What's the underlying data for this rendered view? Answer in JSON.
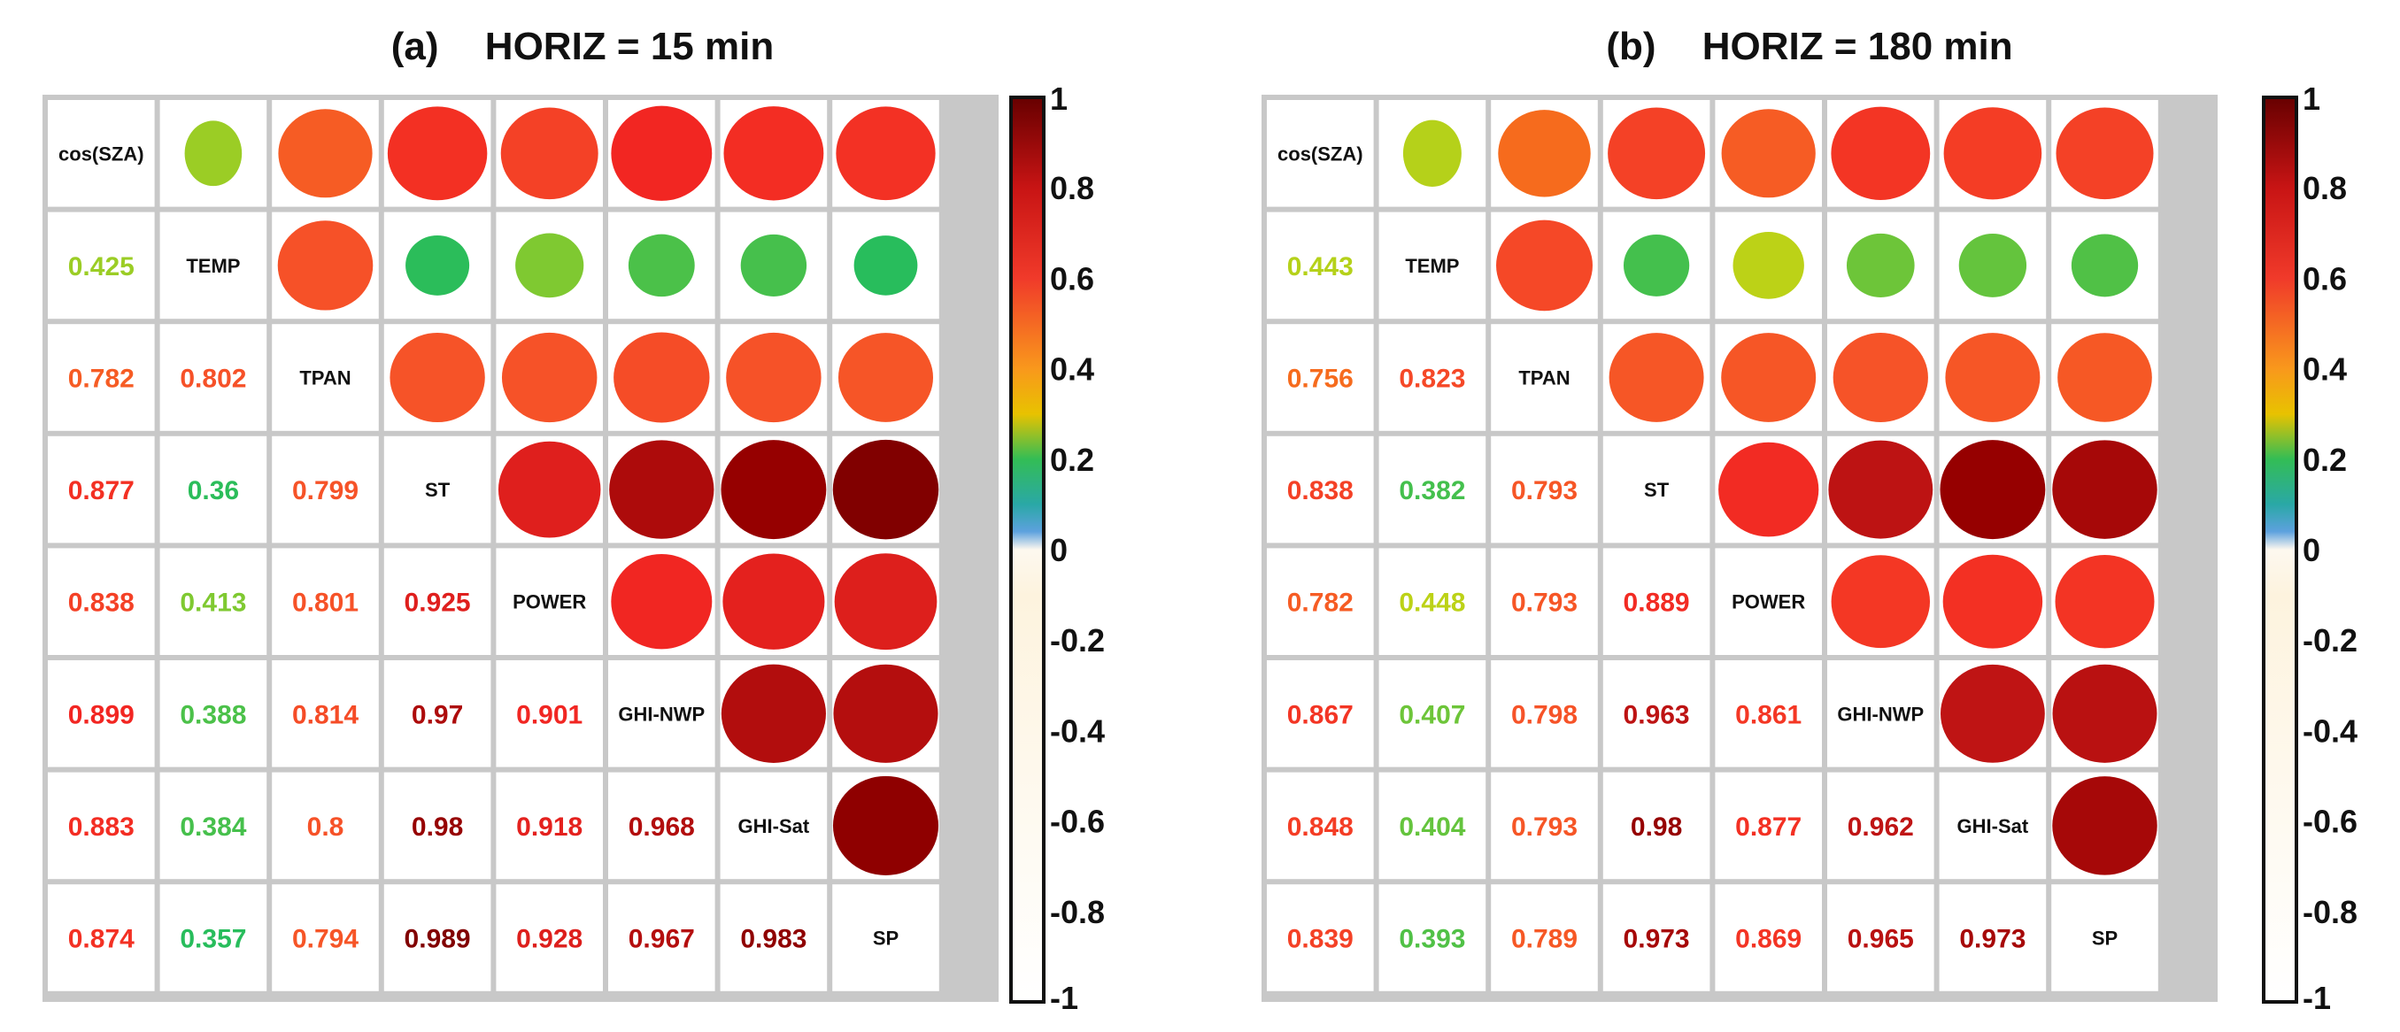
{
  "chart_data": [
    {
      "type": "heatmap",
      "subtype": "correlation-matrix",
      "panel_label": "(a)",
      "title": "HORIZ = 15  min",
      "variables": [
        "cos(SZA)",
        "TEMP",
        "TPAN",
        "ST",
        "POWER",
        "GHI-NWP",
        "GHI-Sat",
        "SP"
      ],
      "lower_triangle_rows": [
        [],
        [
          0.425
        ],
        [
          0.782,
          0.802
        ],
        [
          0.877,
          0.36,
          0.799
        ],
        [
          0.838,
          0.413,
          0.801,
          0.925
        ],
        [
          0.899,
          0.388,
          0.814,
          0.97,
          0.901
        ],
        [
          0.883,
          0.384,
          0.8,
          0.98,
          0.918,
          0.968
        ],
        [
          0.874,
          0.357,
          0.794,
          0.989,
          0.928,
          0.967,
          0.983
        ]
      ],
      "lower_triangle_labels": [
        [],
        [
          "0.425"
        ],
        [
          "0.782",
          "0.802"
        ],
        [
          "0.877",
          "0.36",
          "0.799"
        ],
        [
          "0.838",
          "0.413",
          "0.801",
          "0.925"
        ],
        [
          "0.899",
          "0.388",
          "0.814",
          "0.97",
          "0.901"
        ],
        [
          "0.883",
          "0.384",
          "0.8",
          "0.98",
          "0.918",
          "0.968"
        ],
        [
          "0.874",
          "0.357",
          "0.794",
          "0.989",
          "0.928",
          "0.967",
          "0.983"
        ]
      ],
      "upper_display": "circles",
      "lower_display": "numbers",
      "colorbar": {
        "range": [
          -1,
          1
        ],
        "ticks": [
          "1",
          "0.8",
          "0.6",
          "0.4",
          "0.2",
          "0",
          "-0.2",
          "-0.4",
          "-0.6",
          "-0.8",
          "-1"
        ]
      }
    },
    {
      "type": "heatmap",
      "subtype": "correlation-matrix",
      "panel_label": "(b)",
      "title": "HORIZ = 180  min",
      "variables": [
        "cos(SZA)",
        "TEMP",
        "TPAN",
        "ST",
        "POWER",
        "GHI-NWP",
        "GHI-Sat",
        "SP"
      ],
      "lower_triangle_rows": [
        [],
        [
          0.443
        ],
        [
          0.756,
          0.823
        ],
        [
          0.838,
          0.382,
          0.793
        ],
        [
          0.782,
          0.448,
          0.793,
          0.889
        ],
        [
          0.867,
          0.407,
          0.798,
          0.963,
          0.861
        ],
        [
          0.848,
          0.404,
          0.793,
          0.98,
          0.877,
          0.962
        ],
        [
          0.839,
          0.393,
          0.789,
          0.973,
          0.869,
          0.965,
          0.973
        ]
      ],
      "lower_triangle_labels": [
        [],
        [
          "0.443"
        ],
        [
          "0.756",
          "0.823"
        ],
        [
          "0.838",
          "0.382",
          "0.793"
        ],
        [
          "0.782",
          "0.448",
          "0.793",
          "0.889"
        ],
        [
          "0.867",
          "0.407",
          "0.798",
          "0.963",
          "0.861"
        ],
        [
          "0.848",
          "0.404",
          "0.793",
          "0.98",
          "0.877",
          "0.962"
        ],
        [
          "0.839",
          "0.393",
          "0.789",
          "0.973",
          "0.869",
          "0.965",
          "0.973"
        ]
      ],
      "upper_display": "circles",
      "lower_display": "numbers",
      "colorbar": {
        "range": [
          -1,
          1
        ],
        "ticks": [
          "1",
          "0.8",
          "0.6",
          "0.4",
          "0.2",
          "0",
          "-0.2",
          "-0.4",
          "-0.6",
          "-0.8",
          "-1"
        ]
      }
    }
  ]
}
